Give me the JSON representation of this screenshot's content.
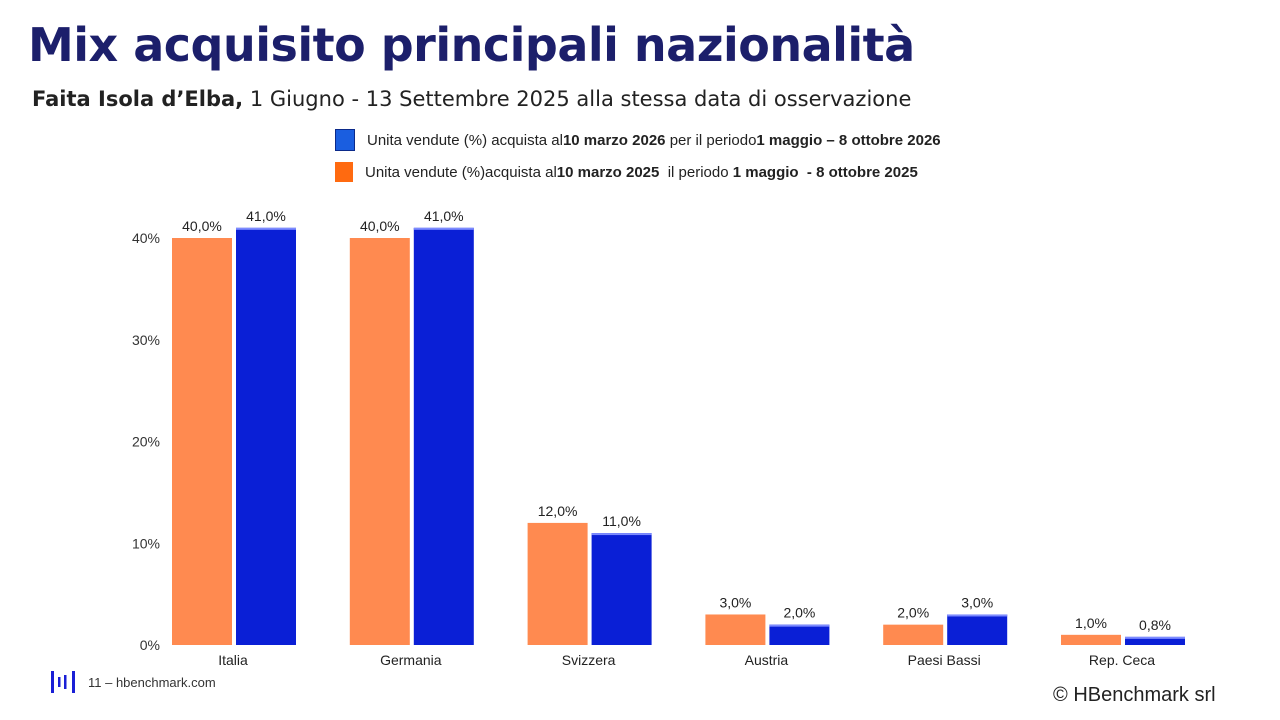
{
  "header": {
    "title": "Mix acquisito principali nazionalità",
    "subtitle_bold": "Faita Isola d’Elba,",
    "subtitle_rest": " 1 Giugno - 13 Settembre 2025 alla stessa data di osservazione"
  },
  "legend": [
    {
      "color": "#1a5ee0",
      "parts": [
        "Unita vendute (%) acquista al ",
        "10 marzo 2026",
        " per il periodo ",
        "1 maggio – 8  ottobre 2026"
      ]
    },
    {
      "color": "#ff6a10",
      "parts": [
        "Unita vendute (%)acquista al ",
        "10 marzo 2025",
        "  il periodo ",
        "1 maggio  - 8 ottobre 2025"
      ]
    }
  ],
  "chart_data": {
    "type": "bar",
    "categories": [
      "Italia",
      "Germania",
      "Svizzera",
      "Austria",
      "Paesi Bassi",
      "Rep. Ceca"
    ],
    "series": [
      {
        "name": "2025",
        "color": "#ff8a50",
        "values": [
          40.0,
          40.0,
          12.0,
          3.0,
          2.0,
          1.0
        ],
        "labels": [
          "40,0%",
          "40,0%",
          "12,0%",
          "3,0%",
          "2,0%",
          "1,0%"
        ]
      },
      {
        "name": "2026",
        "color": "#0a1fd6",
        "values": [
          41.0,
          41.0,
          11.0,
          2.0,
          3.0,
          0.8
        ],
        "labels": [
          "41,0%",
          "41,0%",
          "11,0%",
          "2,0%",
          "3,0%",
          "0,8%"
        ]
      }
    ],
    "yticks": [
      0,
      10,
      20,
      30,
      40
    ],
    "ytick_labels": [
      "0%",
      "10%",
      "20%",
      "30%",
      "40%"
    ],
    "ylim": [
      0,
      41
    ],
    "grid": false
  },
  "footer": {
    "page": "11 – hbenchmark.com",
    "copyright_symbol": "©",
    "copyright": "HBenchmark srl"
  }
}
